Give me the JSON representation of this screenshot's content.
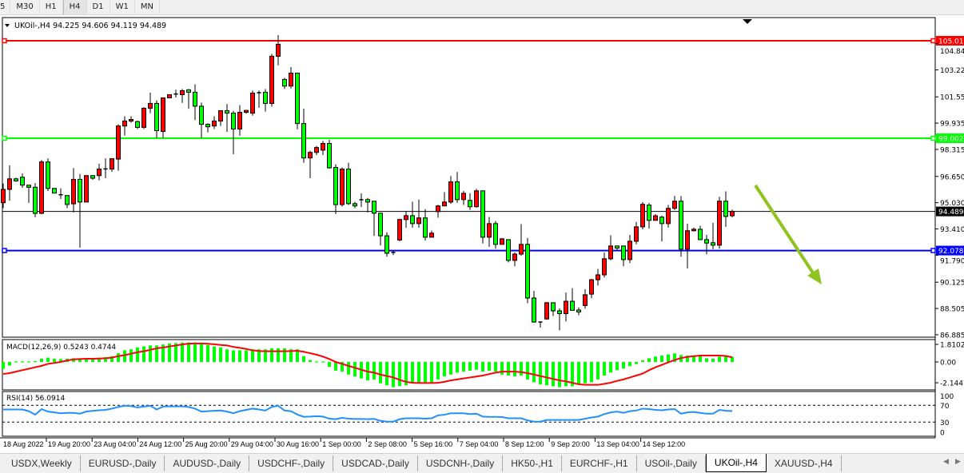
{
  "timeframes": {
    "items": [
      "5",
      "M30",
      "H1",
      "H4",
      "D1",
      "W1",
      "MN"
    ],
    "selected": "H4"
  },
  "chart": {
    "header": "UKOil-,H4  94.225 94.606 94.119 94.489",
    "symbol": "UKOil-",
    "timeframe": "H4",
    "ohlc": {
      "open": 94.225,
      "high": 94.606,
      "low": 94.119,
      "close": 94.489
    },
    "colors": {
      "bull": "#ff0000",
      "bear": "#00ff00",
      "arrow": "#8fc31f"
    },
    "levels": [
      {
        "name": "resistance",
        "price": 105.015,
        "label": "105.015",
        "color": "#ff0000"
      },
      {
        "name": "middle",
        "price": 99.002,
        "label": "99.002",
        "color": "#00ff00"
      },
      {
        "name": "support",
        "price": 92.078,
        "label": "92.078",
        "color": "#0000ff"
      }
    ],
    "current_price": {
      "price": 94.489,
      "label": "94.489"
    },
    "price_axis": [
      "104.840",
      "103.220",
      "101.555",
      "99.935",
      "98.315",
      "96.650",
      "95.030",
      "93.410",
      "91.790",
      "90.125",
      "88.505",
      "86.885"
    ],
    "time_axis": [
      "18 Aug 2022",
      "19 Aug 20:00",
      "23 Aug 04:00",
      "24 Aug 12:00",
      "25 Aug 20:00",
      "29 Aug 04:00",
      "30 Aug 16:00",
      "1 Sep 00:00",
      "2 Sep 08:00",
      "5 Sep 16:00",
      "7 Sep 04:00",
      "8 Sep 12:00",
      "9 Sep 20:00",
      "13 Sep 04:00",
      "14 Sep 12:00"
    ],
    "candles": [
      [
        95.03,
        96.21,
        94.7,
        95.85
      ],
      [
        95.85,
        97.33,
        95.16,
        96.5
      ],
      [
        96.5,
        96.57,
        96.31,
        96.37
      ],
      [
        96.6,
        96.83,
        95.95,
        96.11
      ],
      [
        96.11,
        96.11,
        95.02,
        95.98
      ],
      [
        95.98,
        96.24,
        94.13,
        94.37
      ],
      [
        94.37,
        97.66,
        94.33,
        97.54
      ],
      [
        97.54,
        97.76,
        95.75,
        95.91
      ],
      [
        95.91,
        95.91,
        95.62,
        95.62
      ],
      [
        95.52,
        95.91,
        95.26,
        95.51
      ],
      [
        95.47,
        95.47,
        94.69,
        94.92
      ],
      [
        94.96,
        97.16,
        94.43,
        96.47
      ],
      [
        96.47,
        96.8,
        92.26,
        95.07
      ],
      [
        95.07,
        96.7,
        95.07,
        96.7
      ],
      [
        96.7,
        96.7,
        96.44,
        96.54
      ],
      [
        96.7,
        97.43,
        96.41,
        97.1
      ],
      [
        97.1,
        97.76,
        96.54,
        97.11
      ],
      [
        97.1,
        97.74,
        96.93,
        97.74
      ],
      [
        97.72,
        99.86,
        97.0,
        99.76
      ],
      [
        99.76,
        100.36,
        99.17,
        100.06
      ],
      [
        100.06,
        100.36,
        99.96,
        100.16
      ],
      [
        100.03,
        100.09,
        99.57,
        99.67
      ],
      [
        99.67,
        100.92,
        99.57,
        100.85
      ],
      [
        100.85,
        101.81,
        100.55,
        101.15
      ],
      [
        101.15,
        101.34,
        99.01,
        99.47
      ],
      [
        99.42,
        101.49,
        99.01,
        101.49
      ],
      [
        101.49,
        101.69,
        101.49,
        101.69
      ],
      [
        101.72,
        102.0,
        101.51,
        101.73
      ],
      [
        101.69,
        102.04,
        101.18,
        101.94
      ],
      [
        101.99,
        102.04,
        100.82,
        101.84
      ],
      [
        101.84,
        102.33,
        100.12,
        100.98
      ],
      [
        100.98,
        101.2,
        99.01,
        99.86
      ],
      [
        99.86,
        99.93,
        99.37,
        99.71
      ],
      [
        99.76,
        100.36,
        99.57,
        100.06
      ],
      [
        100.06,
        100.7,
        99.76,
        100.7
      ],
      [
        100.7,
        101.11,
        99.4,
        100.55
      ],
      [
        100.55,
        100.69,
        98.02,
        99.57
      ],
      [
        99.57,
        101.05,
        99.16,
        100.6
      ],
      [
        100.6,
        100.75,
        100.52,
        100.72
      ],
      [
        100.55,
        101.94,
        100.39,
        101.79
      ],
      [
        101.8,
        101.94,
        100.88,
        101.81
      ],
      [
        101.84,
        102.04,
        100.65,
        101.15
      ],
      [
        101.15,
        104.21,
        100.95,
        104.06
      ],
      [
        104.06,
        105.36,
        103.5,
        104.8
      ],
      [
        102.63,
        102.73,
        102.04,
        102.22
      ],
      [
        102.22,
        103.39,
        102.07,
        103.02
      ],
      [
        103.02,
        103.02,
        99.55,
        99.91
      ],
      [
        99.91,
        100.82,
        97.49,
        97.79
      ],
      [
        97.79,
        98.23,
        96.54,
        98.13
      ],
      [
        98.13,
        98.53,
        97.97,
        98.43
      ],
      [
        98.27,
        98.84,
        97.97,
        98.68
      ],
      [
        98.68,
        98.91,
        97.13,
        97.18
      ],
      [
        97.2,
        97.39,
        94.33,
        94.91
      ],
      [
        94.91,
        97.2,
        94.79,
        97.1
      ],
      [
        97.1,
        97.49,
        94.89,
        94.97
      ],
      [
        94.97,
        95.09,
        94.69,
        94.83
      ],
      [
        95.2,
        95.6,
        94.76,
        95.21
      ],
      [
        95.22,
        95.32,
        94.43,
        95.07
      ],
      [
        95.12,
        95.12,
        92.98,
        94.38
      ],
      [
        94.38,
        94.38,
        92.39,
        92.99
      ],
      [
        92.99,
        93.21,
        91.7,
        91.91
      ],
      [
        91.91,
        92.09,
        91.8,
        91.96
      ],
      [
        92.73,
        94.04,
        92.65,
        93.99
      ],
      [
        93.99,
        94.5,
        93.48,
        94.23
      ],
      [
        94.23,
        95.09,
        93.48,
        93.74
      ],
      [
        93.74,
        95.22,
        93.48,
        94.09
      ],
      [
        94.09,
        94.63,
        92.69,
        92.9
      ],
      [
        92.9,
        93.31,
        92.9,
        93.15
      ],
      [
        94.48,
        94.89,
        94.1,
        94.83
      ],
      [
        94.83,
        95.68,
        94.83,
        95.07
      ],
      [
        95.07,
        96.67,
        94.96,
        96.31
      ],
      [
        96.31,
        96.92,
        95.02,
        95.22
      ],
      [
        95.22,
        95.75,
        94.89,
        95.61
      ],
      [
        95.17,
        95.61,
        94.58,
        94.78
      ],
      [
        94.78,
        95.88,
        94.73,
        95.76
      ],
      [
        95.76,
        95.76,
        92.51,
        92.9
      ],
      [
        92.9,
        94.15,
        92.31,
        93.74
      ],
      [
        93.74,
        93.9,
        92.19,
        92.46
      ],
      [
        92.46,
        92.85,
        92.46,
        92.8
      ],
      [
        92.75,
        92.75,
        91.35,
        91.47
      ],
      [
        91.47,
        91.96,
        91.11,
        91.86
      ],
      [
        91.86,
        93.71,
        91.77,
        92.46
      ],
      [
        92.46,
        92.85,
        88.83,
        89.15
      ],
      [
        89.15,
        89.59,
        87.62,
        87.67
      ],
      [
        87.67,
        87.67,
        87.32,
        87.66
      ],
      [
        87.86,
        88.9,
        87.81,
        88.86
      ],
      [
        88.86,
        88.86,
        88.04,
        88.36
      ],
      [
        88.36,
        88.51,
        87.16,
        88.19
      ],
      [
        88.19,
        89.49,
        87.7,
        88.95
      ],
      [
        88.95,
        89.76,
        88.39,
        88.39
      ],
      [
        88.41,
        88.57,
        88.09,
        88.29
      ],
      [
        88.69,
        89.69,
        88.49,
        89.35
      ],
      [
        89.39,
        90.33,
        89.13,
        90.28
      ],
      [
        90.28,
        90.94,
        89.92,
        90.58
      ],
      [
        90.58,
        91.95,
        90.42,
        91.57
      ],
      [
        91.57,
        93.02,
        91.47,
        92.36
      ],
      [
        92.36,
        92.36,
        92.06,
        92.23
      ],
      [
        92.36,
        92.36,
        91.11,
        91.52
      ],
      [
        91.52,
        93.05,
        91.3,
        92.65
      ],
      [
        92.65,
        93.84,
        92.46,
        93.54
      ],
      [
        93.54,
        95.07,
        93.38,
        94.93
      ],
      [
        94.88,
        95.02,
        93.43,
        93.94
      ],
      [
        93.94,
        94.33,
        93.94,
        94.22
      ],
      [
        94.14,
        94.23,
        92.64,
        93.74
      ],
      [
        93.74,
        94.89,
        93.49,
        94.68
      ],
      [
        94.68,
        95.44,
        94.58,
        95.12
      ],
      [
        95.12,
        95.44,
        91.7,
        92.16
      ],
      [
        92.16,
        93.74,
        90.98,
        93.3
      ],
      [
        93.3,
        93.49,
        93.25,
        93.39
      ],
      [
        93.39,
        93.61,
        92.75,
        92.75
      ],
      [
        92.75,
        93.05,
        91.85,
        92.54
      ],
      [
        92.56,
        93.79,
        92.16,
        92.41
      ],
      [
        92.41,
        95.39,
        92.19,
        95.12
      ],
      [
        95.12,
        95.73,
        93.54,
        94.18
      ],
      [
        94.225,
        94.606,
        94.119,
        94.489
      ]
    ]
  },
  "macd": {
    "label": "MACD(12,26,9) 0.5243 0.4744",
    "axis": [
      "1.8102",
      "0.00",
      "-2.1447"
    ],
    "histogram": [
      -0.71,
      -0.38,
      0.05,
      0.05,
      0.05,
      0.1,
      0.33,
      0.44,
      0.33,
      0.3,
      0.33,
      0.38,
      0.38,
      0.38,
      0.4,
      0.44,
      0.5,
      0.6,
      0.9,
      1.2,
      1.3,
      1.5,
      1.6,
      1.7,
      1.7,
      1.8,
      1.9,
      1.95,
      2.0,
      2.0,
      2.0,
      1.9,
      1.75,
      1.6,
      1.5,
      1.3,
      1.2,
      1.2,
      1.2,
      1.3,
      1.3,
      1.3,
      1.4,
      1.4,
      1.4,
      1.3,
      1.3,
      0.6,
      0.2,
      0.05,
      0.05,
      -0.5,
      -0.9,
      -1.0,
      -1.3,
      -1.5,
      -1.7,
      -1.9,
      -1.8,
      -2.2,
      -2.4,
      -2.6,
      -2.5,
      -2.4,
      -2.1,
      -2.1,
      -2.2,
      -2.1,
      -1.8,
      -1.5,
      -1.3,
      -1.1,
      -1.0,
      -0.9,
      -0.8,
      -1.0,
      -0.9,
      -1.0,
      -1.3,
      -1.4,
      -1.5,
      -1.4,
      -1.8,
      -2.1,
      -2.3,
      -2.4,
      -2.5,
      -2.6,
      -2.5,
      -2.5,
      -2.3,
      -2.2,
      -2.1,
      -1.8,
      -1.4,
      -1.1,
      -0.85,
      -0.66,
      -0.44,
      -0.22,
      0.16,
      0.38,
      0.55,
      0.66,
      0.77,
      0.88,
      0.71,
      0.66,
      0.6,
      0.6,
      0.38,
      0.33,
      0.55,
      0.55,
      0.5243
    ],
    "signal": [
      -1.24,
      -1.15,
      -1.0,
      -0.85,
      -0.7,
      -0.55,
      -0.4,
      -0.2,
      -0.1,
      0.0,
      0.15,
      0.27,
      0.3,
      0.33,
      0.33,
      0.35,
      0.38,
      0.44,
      0.6,
      0.7,
      0.85,
      1.0,
      1.1,
      1.25,
      1.4,
      1.48,
      1.6,
      1.7,
      1.8,
      1.88,
      1.9,
      1.9,
      1.87,
      1.82,
      1.75,
      1.7,
      1.55,
      1.45,
      1.34,
      1.2,
      1.12,
      1.1,
      1.1,
      1.1,
      1.1,
      1.12,
      1.15,
      1.05,
      0.9,
      0.75,
      0.55,
      0.3,
      0.0,
      -0.2,
      -0.4,
      -0.6,
      -0.8,
      -1.0,
      -1.1,
      -1.3,
      -1.45,
      -1.6,
      -1.85,
      -2.05,
      -2.15,
      -2.17,
      -2.17,
      -2.17,
      -2.15,
      -2.05,
      -1.9,
      -1.8,
      -1.7,
      -1.6,
      -1.5,
      -1.4,
      -1.25,
      -1.1,
      -1.0,
      -1.0,
      -1.0,
      -1.05,
      -1.15,
      -1.3,
      -1.45,
      -1.6,
      -1.75,
      -1.9,
      -2.0,
      -2.15,
      -2.3,
      -2.36,
      -2.36,
      -2.36,
      -2.25,
      -2.14,
      -1.95,
      -1.8,
      -1.6,
      -1.4,
      -1.2,
      -0.85,
      -0.55,
      -0.3,
      -0.05,
      0.2,
      0.4,
      0.52,
      0.6,
      0.66,
      0.66,
      0.66,
      0.66,
      0.62,
      0.4744
    ],
    "colors": {
      "histogram": "#00ff00",
      "signal": "#ff0000"
    }
  },
  "rsi": {
    "label": "RSI(14) 56.0914",
    "axis": [
      "100",
      "70",
      "30",
      "0"
    ],
    "levels": [
      70,
      30
    ],
    "values": [
      60,
      60,
      60,
      60,
      56,
      47.5,
      61,
      55,
      53,
      51,
      52,
      52,
      50,
      55,
      57,
      58,
      59,
      62,
      66,
      69,
      68,
      65,
      67,
      69,
      60,
      67,
      67.5,
      67.5,
      67.5,
      66,
      62,
      55,
      56,
      57,
      57.5,
      55,
      51,
      56,
      59,
      62,
      60,
      57.5,
      66,
      69,
      57.5,
      56,
      48,
      42.5,
      43,
      44,
      43,
      38,
      37,
      40,
      38,
      37.5,
      37.5,
      37,
      37.5,
      33,
      31,
      31,
      37,
      39,
      39,
      39,
      38,
      39,
      46,
      47.5,
      51,
      51,
      51,
      49,
      50,
      43,
      42.5,
      42.5,
      42,
      39,
      39,
      39,
      34,
      31,
      31,
      35,
      35,
      35,
      35,
      35,
      35,
      38,
      41,
      43,
      49,
      53,
      55,
      52,
      56,
      57.5,
      62,
      61,
      59,
      58,
      60,
      61,
      50,
      53,
      54,
      52,
      50,
      50,
      59,
      57,
      56.0914
    ],
    "color": "#1e90ff"
  },
  "tabs": {
    "items": [
      "USDX,Weekly",
      "EURUSD-,Daily",
      "AUDUSD-,Daily",
      "USDCHF-,Daily",
      "USDCAD-,Daily",
      "USDCNH-,Daily",
      "HK50-,H1",
      "EURCHF-,H1",
      "USOil-,Daily",
      "UKOil-,H4",
      "XAUUSD-,H4"
    ],
    "active": "UKOil-,H4"
  }
}
